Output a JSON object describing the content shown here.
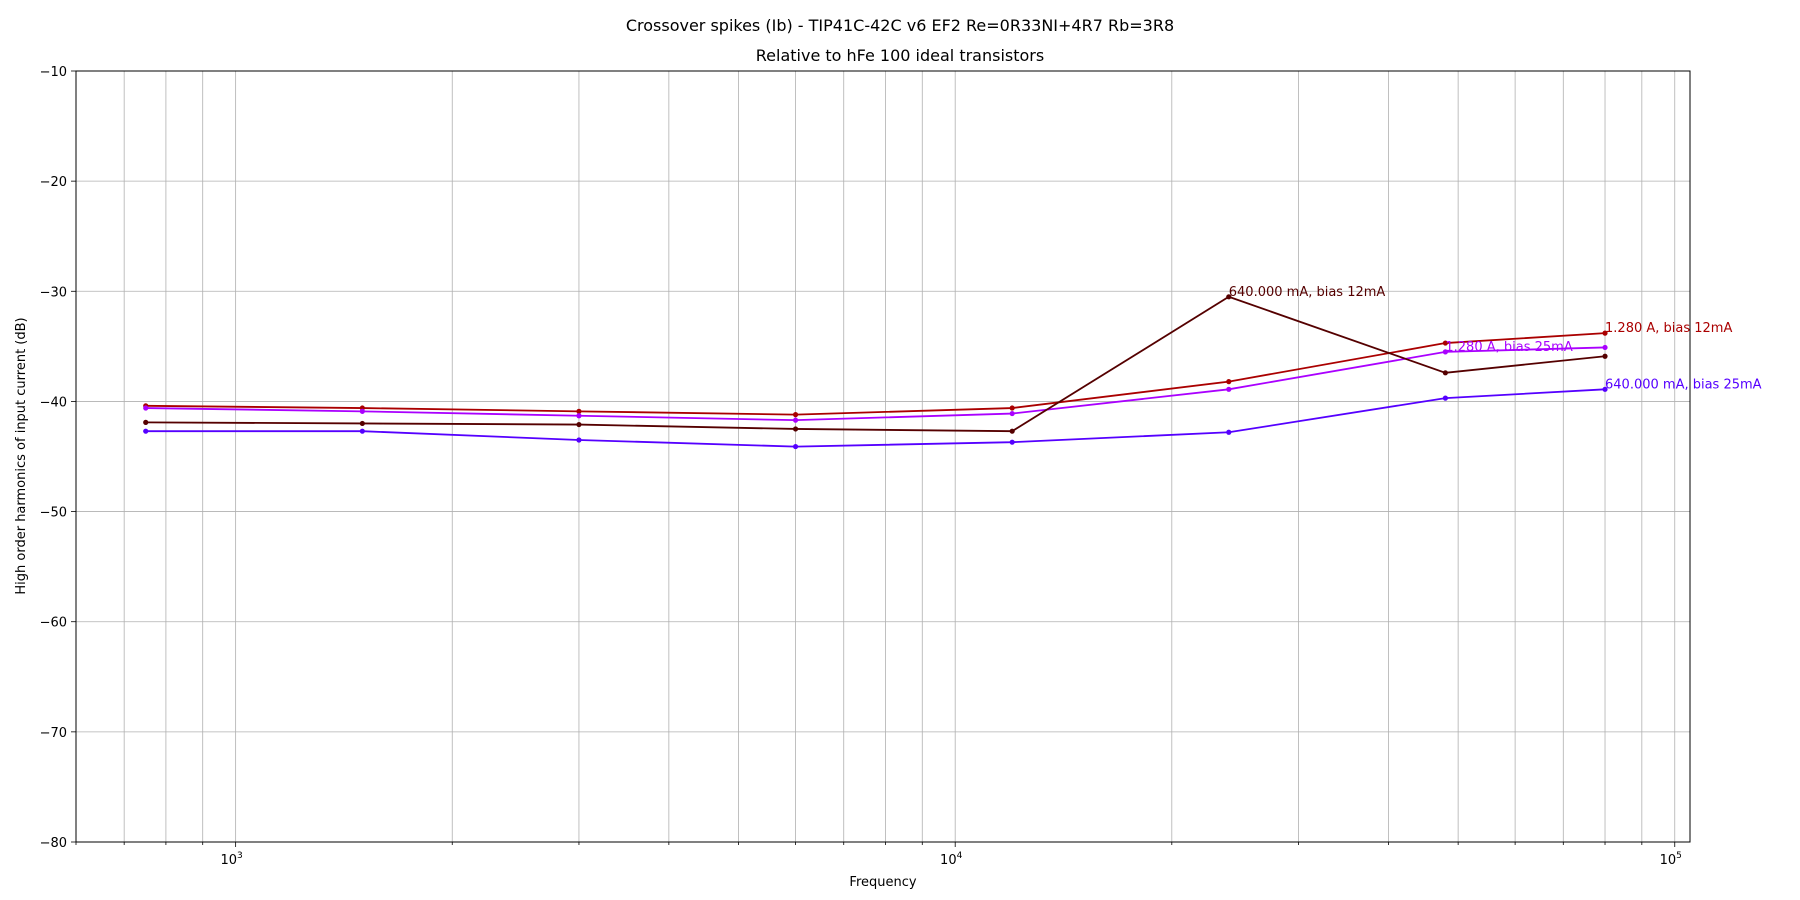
{
  "chart_data": {
    "type": "line",
    "title": "Crossover spikes (Ib) - TIP41C-42C v6 EF2 Re=0R33NI+4R7 Rb=3R8",
    "subtitle": "Relative to hFe 100 ideal transistors",
    "xlabel": "Frequency",
    "ylabel": "High order harmonics of input current (dB)",
    "x_scale": "log",
    "xlim": [
      600,
      105000
    ],
    "ylim": [
      -80,
      -10
    ],
    "x_ticks": [
      {
        "value": 1000,
        "base": "10",
        "exp": "3"
      },
      {
        "value": 10000,
        "base": "10",
        "exp": "4"
      },
      {
        "value": 100000,
        "base": "10",
        "exp": "5"
      }
    ],
    "y_ticks": [
      {
        "value": -80,
        "label": "−80"
      },
      {
        "value": -70,
        "label": "−70"
      },
      {
        "value": -60,
        "label": "−60"
      },
      {
        "value": -50,
        "label": "−50"
      },
      {
        "value": -40,
        "label": "−40"
      },
      {
        "value": -30,
        "label": "−30"
      },
      {
        "value": -20,
        "label": "−20"
      },
      {
        "value": -10,
        "label": "−10"
      }
    ],
    "grid": true,
    "x": [
      750,
      1500,
      3000,
      6000,
      12000,
      24000,
      48000,
      80000
    ],
    "series": [
      {
        "name": "1.280 A, bias 12mA",
        "color": "#aa0000",
        "values": [
          -40.4,
          -40.6,
          -40.9,
          -41.2,
          -40.6,
          -38.2,
          -34.7,
          -33.8
        ]
      },
      {
        "name": "1.280 A, bias 25mA",
        "color": "#aa00ff",
        "values": [
          -40.6,
          -40.9,
          -41.3,
          -41.7,
          -41.1,
          -38.9,
          -35.5,
          -35.1
        ]
      },
      {
        "name": "640.000 mA, bias 12mA",
        "color": "#550000",
        "values": [
          -41.9,
          -42.0,
          -42.1,
          -42.5,
          -42.7,
          -30.5,
          -37.4,
          -35.9
        ]
      },
      {
        "name": "640.000 mA, bias 25mA",
        "color": "#5500ff",
        "values": [
          -42.7,
          -42.7,
          -43.5,
          -44.1,
          -43.7,
          -42.8,
          -39.7,
          -38.9
        ]
      }
    ],
    "annotations": [
      {
        "text": "640.000 mA, bias 12mA",
        "x": 24000,
        "y": -30.5,
        "color": "#550000"
      },
      {
        "text": "1.280 A, bias 12mA",
        "x": 80000,
        "y": -33.8,
        "color": "#aa0000"
      },
      {
        "text": "1.280 A, bias 25mA",
        "x": 48000,
        "y": -35.5,
        "color": "#aa00ff"
      },
      {
        "text": "640.000 mA, bias 25mA",
        "x": 80000,
        "y": -38.9,
        "color": "#5500ff"
      }
    ]
  }
}
